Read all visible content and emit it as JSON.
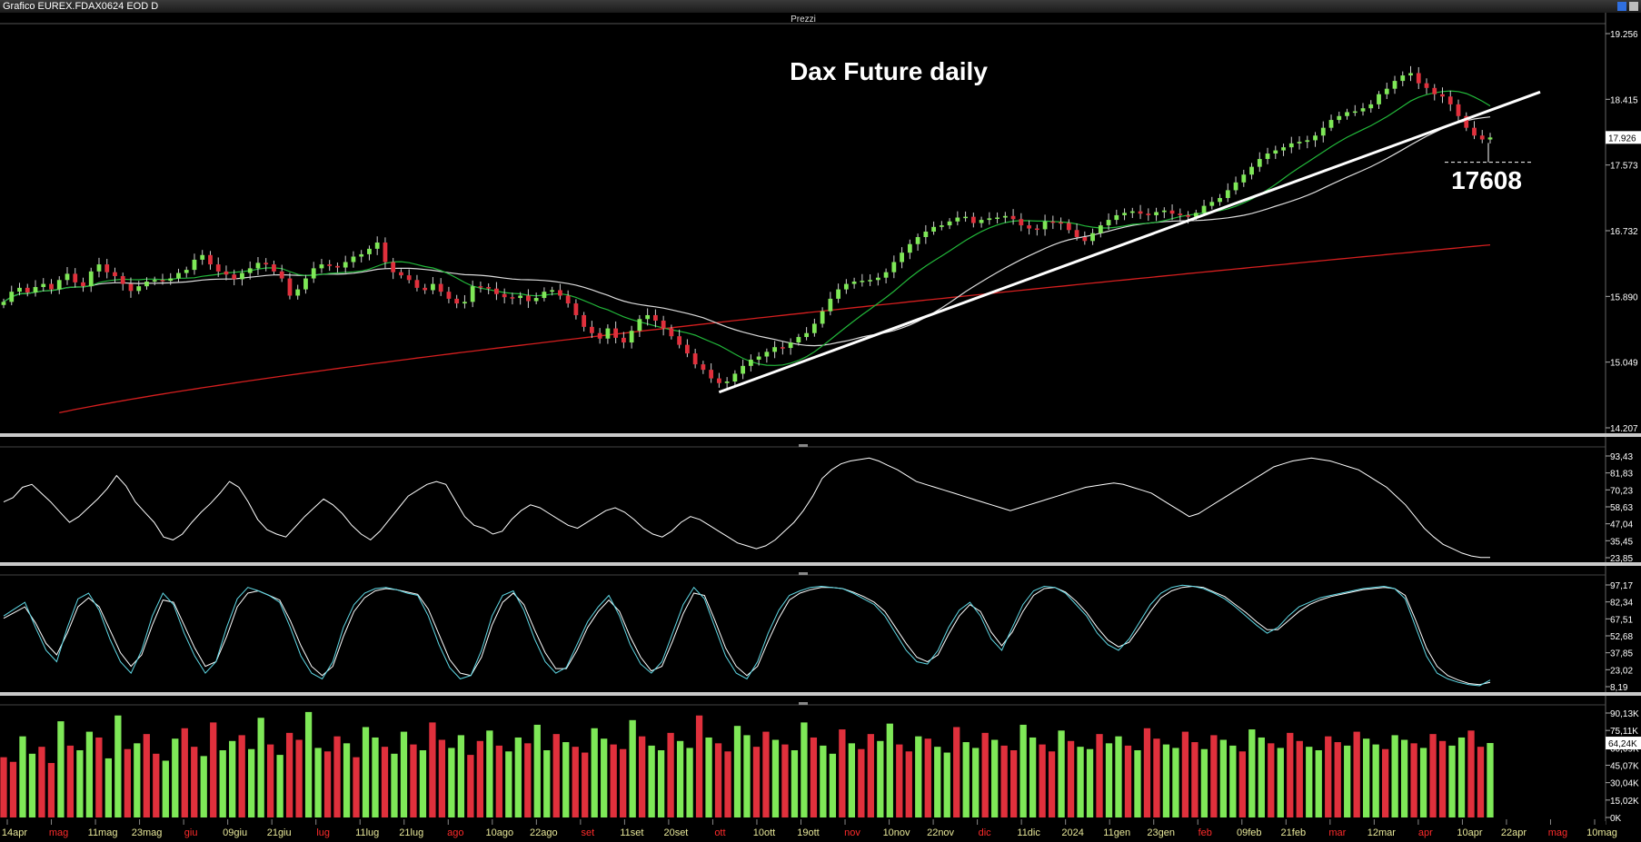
{
  "window": {
    "title": "Grafico EUREX.FDAX0624 EOD D",
    "pane_label": "Prezzi"
  },
  "colors": {
    "background": "#000000",
    "bull": "#7ee857",
    "bear": "#e0303c",
    "ma_short": "#22b83a",
    "ma_mid": "#dcdcdc",
    "ma_long": "#d51f1f",
    "trendline": "#ffffff",
    "oscillator": "#ffffff",
    "stoch_k": "#5fd9e6",
    "stoch_d": "#ffffff",
    "axis_text": "#ffffff",
    "month_label": "#ff2b2b",
    "date_label": "#e8e89a"
  },
  "chart_data": [
    {
      "type": "candlestick",
      "pane": "price",
      "title": "Dax Future daily",
      "y_ticks": [
        "19.256",
        "18.415",
        "17.573",
        "16.732",
        "15.890",
        "15.049",
        "14.207"
      ],
      "ylim": [
        14207,
        19256
      ],
      "last_price_label": "17.926",
      "annotation": "17608",
      "support_level": 17608,
      "series": [
        {
          "name": "close",
          "values": [
            15820,
            15950,
            16000,
            15940,
            16010,
            16050,
            15980,
            16100,
            16180,
            16070,
            16020,
            16210,
            16300,
            16200,
            16150,
            16050,
            15960,
            16020,
            16080,
            16100,
            16090,
            16120,
            16190,
            16230,
            16360,
            16420,
            16300,
            16210,
            16170,
            16110,
            16190,
            16250,
            16320,
            16300,
            16210,
            16120,
            15900,
            15980,
            16120,
            16250,
            16300,
            16280,
            16260,
            16330,
            16400,
            16430,
            16500,
            16580,
            16330,
            16200,
            16160,
            16100,
            16000,
            15970,
            16050,
            15950,
            15860,
            15800,
            15820,
            16020,
            16010,
            15990,
            15920,
            15880,
            15870,
            15900,
            15830,
            15870,
            15950,
            15970,
            15900,
            15800,
            15650,
            15500,
            15420,
            15350,
            15480,
            15360,
            15300,
            15450,
            15600,
            15650,
            15580,
            15480,
            15380,
            15270,
            15160,
            15020,
            14950,
            14840,
            14780,
            14800,
            14900,
            15000,
            15080,
            15120,
            15180,
            15240,
            15230,
            15300,
            15370,
            15420,
            15540,
            15700,
            15860,
            15980,
            16050,
            16080,
            16090,
            16100,
            16130,
            16200,
            16330,
            16450,
            16560,
            16650,
            16720,
            16780,
            16800,
            16850,
            16900,
            16910,
            16830,
            16870,
            16890,
            16900,
            16920,
            16880,
            16800,
            16760,
            16750,
            16850,
            16840,
            16830,
            16740,
            16650,
            16600,
            16700,
            16800,
            16870,
            16930,
            16960,
            16980,
            16950,
            16930,
            16970,
            16990,
            16950,
            16930,
            16910,
            16960,
            17050,
            17100,
            17150,
            17250,
            17350,
            17450,
            17550,
            17650,
            17720,
            17760,
            17800,
            17850,
            17870,
            17890,
            17950,
            18050,
            18150,
            18200,
            18250,
            18260,
            18300,
            18350,
            18480,
            18550,
            18650,
            18720,
            18750,
            18620,
            18560,
            18480,
            18450,
            18350,
            18200,
            18050,
            17950,
            17900,
            17926
          ]
        }
      ]
    },
    {
      "type": "line",
      "pane": "momentum",
      "y_ticks": [
        "93,43",
        "81,83",
        "70,23",
        "58,63",
        "47,04",
        "35,45",
        "23,85"
      ],
      "ylim": [
        23.85,
        93.43
      ],
      "series": [
        {
          "name": "momentum",
          "values": [
            62,
            65,
            72,
            74,
            68,
            62,
            55,
            48,
            52,
            58,
            64,
            71,
            80,
            73,
            62,
            55,
            48,
            38,
            36,
            40,
            48,
            55,
            61,
            68,
            76,
            72,
            62,
            50,
            43,
            40,
            38,
            45,
            52,
            58,
            64,
            60,
            54,
            46,
            40,
            36,
            42,
            50,
            58,
            66,
            70,
            74,
            76,
            74,
            63,
            52,
            46,
            44,
            40,
            42,
            50,
            56,
            60,
            58,
            54,
            50,
            46,
            44,
            48,
            52,
            56,
            58,
            55,
            50,
            44,
            40,
            38,
            42,
            48,
            52,
            50,
            46,
            42,
            38,
            34,
            32,
            30,
            32,
            36,
            42,
            48,
            56,
            66,
            78,
            84,
            88,
            90,
            91,
            92,
            90,
            87,
            84,
            80,
            76,
            74,
            72,
            70,
            68,
            66,
            64,
            62,
            60,
            58,
            56,
            58,
            60,
            62,
            64,
            66,
            68,
            70,
            72,
            73,
            74,
            75,
            74,
            72,
            70,
            68,
            64,
            60,
            56,
            52,
            54,
            58,
            62,
            66,
            70,
            74,
            78,
            82,
            86,
            88,
            90,
            91,
            92,
            91,
            90,
            88,
            86,
            84,
            80,
            76,
            72,
            66,
            60,
            52,
            44,
            38,
            33,
            30,
            27,
            25,
            24,
            24
          ]
        }
      ]
    },
    {
      "type": "line",
      "pane": "stochastic",
      "y_ticks": [
        "97,17",
        "82,34",
        "67,51",
        "52,68",
        "37,85",
        "23,02",
        "8,19"
      ],
      "ylim": [
        8.19,
        97.17
      ],
      "series": [
        {
          "name": "%K",
          "values": [
            70,
            76,
            82,
            60,
            40,
            30,
            60,
            85,
            90,
            75,
            50,
            30,
            20,
            40,
            70,
            90,
            80,
            55,
            35,
            20,
            30,
            60,
            85,
            95,
            92,
            88,
            82,
            60,
            35,
            20,
            15,
            30,
            60,
            80,
            90,
            94,
            95,
            93,
            90,
            88,
            70,
            45,
            25,
            15,
            18,
            40,
            70,
            88,
            92,
            75,
            50,
            30,
            20,
            25,
            45,
            65,
            78,
            88,
            70,
            45,
            28,
            20,
            30,
            55,
            80,
            95,
            85,
            60,
            35,
            20,
            15,
            30,
            55,
            75,
            88,
            92,
            95,
            96,
            95,
            94,
            90,
            85,
            80,
            70,
            55,
            40,
            30,
            28,
            40,
            60,
            75,
            82,
            70,
            50,
            40,
            60,
            80,
            92,
            96,
            95,
            90,
            80,
            70,
            55,
            45,
            40,
            50,
            65,
            80,
            90,
            95,
            97,
            96,
            94,
            90,
            85,
            78,
            70,
            62,
            55,
            60,
            70,
            78,
            82,
            86,
            88,
            90,
            92,
            94,
            95,
            96,
            94,
            85,
            60,
            35,
            20,
            15,
            12,
            10,
            9,
            14
          ]
        },
        {
          "name": "%D",
          "values": [
            68,
            73,
            78,
            64,
            46,
            36,
            55,
            78,
            86,
            78,
            58,
            38,
            26,
            36,
            62,
            84,
            82,
            62,
            42,
            26,
            30,
            52,
            78,
            90,
            92,
            88,
            84,
            66,
            44,
            26,
            18,
            26,
            52,
            74,
            86,
            92,
            94,
            93,
            91,
            89,
            76,
            54,
            32,
            20,
            18,
            34,
            62,
            82,
            90,
            80,
            58,
            38,
            24,
            24,
            40,
            60,
            74,
            84,
            74,
            52,
            34,
            22,
            26,
            48,
            72,
            90,
            88,
            66,
            42,
            26,
            18,
            26,
            48,
            68,
            84,
            90,
            93,
            95,
            95,
            94,
            91,
            87,
            82,
            74,
            60,
            46,
            34,
            30,
            36,
            54,
            70,
            80,
            74,
            56,
            44,
            56,
            74,
            88,
            94,
            95,
            91,
            83,
            73,
            60,
            49,
            43,
            47,
            60,
            74,
            86,
            92,
            95,
            96,
            95,
            91,
            87,
            80,
            73,
            65,
            58,
            58,
            66,
            74,
            80,
            84,
            87,
            89,
            91,
            93,
            94,
            95,
            94,
            88,
            66,
            42,
            26,
            18,
            14,
            11,
            10,
            12
          ]
        }
      ]
    },
    {
      "type": "bar",
      "pane": "volume",
      "y_ticks": [
        "90,13K",
        "75,11K",
        "60,09K",
        "45,07K",
        "30,04K",
        "15,02K",
        "0K"
      ],
      "ylim": [
        0,
        90130
      ],
      "last_volume_label": "64,24K",
      "values": [
        52000,
        48000,
        70000,
        55000,
        61000,
        47000,
        83000,
        62000,
        58000,
        74000,
        69000,
        51000,
        88000,
        59000,
        64000,
        72000,
        55000,
        49000,
        68000,
        77000,
        61000,
        53000,
        82000,
        58000,
        66000,
        71000,
        59000,
        86000,
        63000,
        54000,
        73000,
        67000,
        91000,
        60000,
        57000,
        70000,
        64000,
        52000,
        78000,
        69000,
        61000,
        55000,
        74000,
        63000,
        58000,
        82000,
        67000,
        60000,
        71000,
        54000,
        66000,
        75000,
        62000,
        57000,
        69000,
        64000,
        80000,
        58000,
        72000,
        65000,
        61000,
        56000,
        77000,
        68000,
        63000,
        59000,
        84000,
        70000,
        62000,
        58000,
        73000,
        66000,
        60000,
        88000,
        69000,
        64000,
        57000,
        79000,
        71000,
        61000,
        74000,
        67000,
        63000,
        58000,
        82000,
        69000,
        62000,
        55000,
        76000,
        64000,
        59000,
        72000,
        66000,
        81000,
        63000,
        57000,
        70000,
        68000,
        61000,
        56000,
        78000,
        65000,
        60000,
        73000,
        67000,
        62000,
        58000,
        80000,
        69000,
        63000,
        57000,
        75000,
        66000,
        61000,
        59000,
        72000,
        64000,
        70000,
        62000,
        58000,
        77000,
        68000,
        63000,
        60000,
        74000,
        65000,
        59000,
        71000,
        67000,
        62000,
        57000,
        76000,
        69000,
        64000,
        60000,
        73000,
        66000,
        61000,
        58000,
        70000,
        65000,
        62000,
        74000,
        68000,
        63000,
        59000,
        71000,
        67000,
        64000,
        60000,
        72000,
        66000,
        62000,
        69000,
        75000,
        61000,
        64240
      ]
    }
  ],
  "x_axis": {
    "labels": [
      {
        "text": "14apr",
        "kind": "date"
      },
      {
        "text": "mag",
        "kind": "month"
      },
      {
        "text": "11mag",
        "kind": "date"
      },
      {
        "text": "23mag",
        "kind": "date"
      },
      {
        "text": "giu",
        "kind": "month"
      },
      {
        "text": "09giu",
        "kind": "date"
      },
      {
        "text": "21giu",
        "kind": "date"
      },
      {
        "text": "lug",
        "kind": "month"
      },
      {
        "text": "11lug",
        "kind": "date"
      },
      {
        "text": "21lug",
        "kind": "date"
      },
      {
        "text": "ago",
        "kind": "month"
      },
      {
        "text": "10ago",
        "kind": "date"
      },
      {
        "text": "22ago",
        "kind": "date"
      },
      {
        "text": "set",
        "kind": "month"
      },
      {
        "text": "11set",
        "kind": "date"
      },
      {
        "text": "20set",
        "kind": "date"
      },
      {
        "text": "ott",
        "kind": "month"
      },
      {
        "text": "10ott",
        "kind": "date"
      },
      {
        "text": "19ott",
        "kind": "date"
      },
      {
        "text": "nov",
        "kind": "month"
      },
      {
        "text": "10nov",
        "kind": "date"
      },
      {
        "text": "22nov",
        "kind": "date"
      },
      {
        "text": "dic",
        "kind": "month"
      },
      {
        "text": "11dic",
        "kind": "date"
      },
      {
        "text": "2024",
        "kind": "date"
      },
      {
        "text": "11gen",
        "kind": "date"
      },
      {
        "text": "23gen",
        "kind": "date"
      },
      {
        "text": "feb",
        "kind": "month"
      },
      {
        "text": "09feb",
        "kind": "date"
      },
      {
        "text": "21feb",
        "kind": "date"
      },
      {
        "text": "mar",
        "kind": "month"
      },
      {
        "text": "12mar",
        "kind": "date"
      },
      {
        "text": "apr",
        "kind": "month"
      },
      {
        "text": "10apr",
        "kind": "date"
      },
      {
        "text": "22apr",
        "kind": "date"
      },
      {
        "text": "mag",
        "kind": "month"
      },
      {
        "text": "10mag",
        "kind": "date"
      }
    ]
  }
}
